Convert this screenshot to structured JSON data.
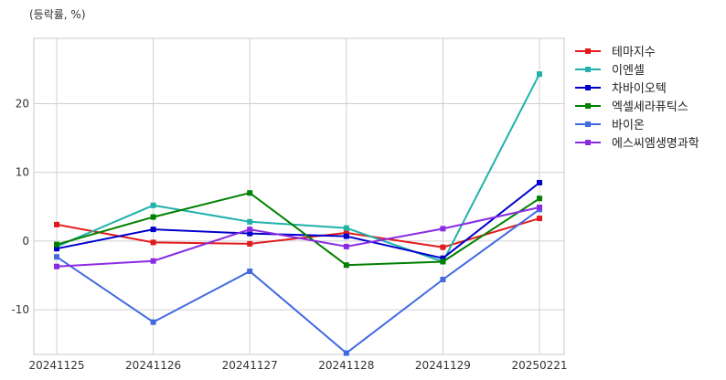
{
  "chart_data": {
    "type": "line",
    "unit_label": "(등락률, %)",
    "categories": [
      "20241125",
      "20241126",
      "20241127",
      "20241128",
      "20241129",
      "20250221"
    ],
    "ylim": [
      -16.5,
      29.5
    ],
    "yticks": [
      -10,
      0,
      10,
      20
    ],
    "grid": true,
    "legend_position": "right-outside",
    "series": [
      {
        "name": "테마지수",
        "color": "#e31a1c",
        "values": [
          2.4,
          -0.2,
          -0.4,
          1.2,
          -0.9,
          3.3
        ]
      },
      {
        "name": "이엔셀",
        "color": "#20b2aa",
        "values": [
          -0.8,
          5.2,
          2.8,
          1.9,
          -3.0,
          24.3
        ]
      },
      {
        "name": "차바이오텍",
        "color": "#0000cd",
        "values": [
          -1.1,
          1.7,
          1.1,
          0.7,
          -2.5,
          8.5
        ]
      },
      {
        "name": "엑셀세라퓨틱스",
        "color": "#008000",
        "values": [
          -0.5,
          3.5,
          7.0,
          -3.5,
          -3.0,
          6.2
        ]
      },
      {
        "name": "바이온",
        "color": "#4169e1",
        "values": [
          -2.3,
          -11.8,
          -4.4,
          -16.3,
          -5.6,
          4.6
        ]
      },
      {
        "name": "에스씨엠생명과학",
        "color": "#8a2be2",
        "values": [
          -3.7,
          -2.9,
          1.7,
          -0.8,
          1.8,
          4.9
        ]
      }
    ]
  }
}
